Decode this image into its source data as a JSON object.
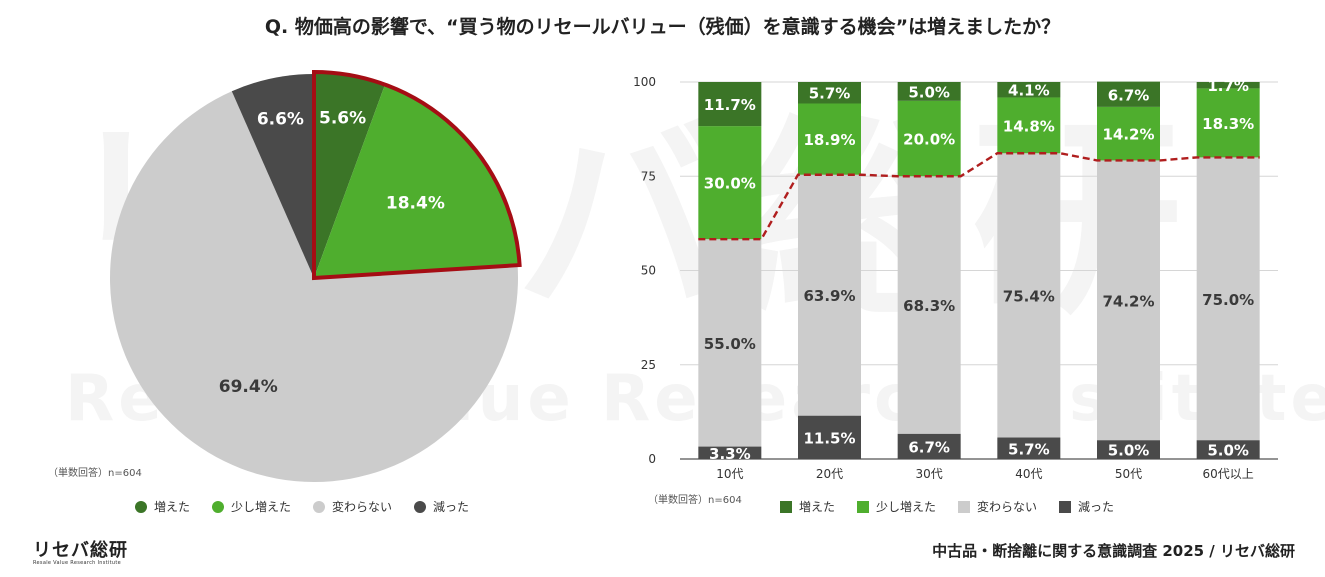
{
  "title": "Q. 物価高の影響で、“買う物のリセールバリュー（残価）を意識する機会”は増えましたか？",
  "watermark": {
    "jp": "リセバ総研",
    "en": "Resale Value Research Institute"
  },
  "colors": {
    "increased": "#3b7527",
    "slightly_increased": "#4fae2e",
    "unchanged": "#cccccc",
    "decreased": "#4a4a4a",
    "highlight": "#a50d14",
    "dashed": "#b01e1e"
  },
  "pie": {
    "note": "（単数回答）n=604"
  },
  "bar": {
    "note": "（単数回答）n=604"
  },
  "legend": [
    "増えた",
    "少し増えた",
    "変わらない",
    "減った"
  ],
  "footer": {
    "logo_jp": "リセバ総研",
    "logo_en": "Resale Value Research Institute",
    "source": "中古品・断捨離に関する意識調査 2025 / リセバ総研"
  },
  "chart_data": [
    {
      "type": "pie",
      "categories": [
        "増えた",
        "少し増えた",
        "変わらない",
        "減った"
      ],
      "values": [
        5.6,
        18.4,
        69.4,
        6.6
      ],
      "labels": [
        "5.6%",
        "18.4%",
        "69.4%",
        "6.6%"
      ],
      "highlighted": [
        "増えた",
        "少し増えた"
      ],
      "legend_position": "bottom"
    },
    {
      "type": "bar",
      "stacked": true,
      "categories": [
        "10代",
        "20代",
        "30代",
        "40代",
        "50代",
        "60代以上"
      ],
      "series": [
        {
          "name": "減った",
          "values": [
            3.3,
            11.5,
            6.7,
            5.7,
            5.0,
            5.0
          ]
        },
        {
          "name": "変わらない",
          "values": [
            55.0,
            63.9,
            68.3,
            75.4,
            74.2,
            75.0
          ]
        },
        {
          "name": "少し増えた",
          "values": [
            30.0,
            18.9,
            20.0,
            14.8,
            14.2,
            18.3
          ]
        },
        {
          "name": "増えた",
          "values": [
            11.7,
            5.7,
            5.0,
            4.1,
            6.7,
            1.7
          ]
        }
      ],
      "labels": {
        "減った": [
          "3.3%",
          "11.5%",
          "6.7%",
          "5.7%",
          "5.0%",
          "5.0%"
        ],
        "変わらない": [
          "55.0%",
          "63.9%",
          "68.3%",
          "75.4%",
          "74.2%",
          "75.0%"
        ],
        "少し増えた": [
          "30.0%",
          "18.9%",
          "20.0%",
          "14.8%",
          "14.2%",
          "18.3%"
        ],
        "増えた": [
          "11.7%",
          "5.7%",
          "5.0%",
          "4.1%",
          "6.7%",
          "1.7%"
        ]
      },
      "yticks": [
        0,
        25,
        50,
        75,
        100
      ],
      "ylim": [
        0,
        100
      ],
      "grid": true,
      "dashed_line": "top of 変わらない",
      "legend_position": "bottom"
    }
  ]
}
